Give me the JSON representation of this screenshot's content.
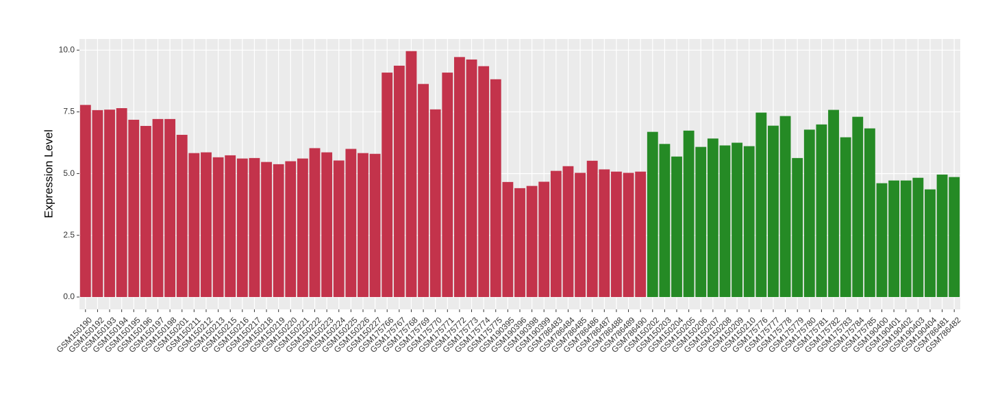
{
  "chart_data": {
    "type": "bar",
    "y_label": "Expression Level",
    "categories": [
      "GSM150190",
      "GSM150192",
      "GSM150193",
      "GSM150194",
      "GSM150195",
      "GSM150196",
      "GSM150197",
      "GSM150198",
      "GSM150201",
      "GSM150211",
      "GSM150212",
      "GSM150213",
      "GSM150215",
      "GSM150216",
      "GSM150217",
      "GSM150218",
      "GSM150219",
      "GSM150220",
      "GSM150221",
      "GSM150222",
      "GSM150223",
      "GSM150224",
      "GSM150225",
      "GSM150226",
      "GSM150227",
      "GSM175766",
      "GSM175767",
      "GSM175768",
      "GSM175769",
      "GSM175770",
      "GSM175771",
      "GSM175772",
      "GSM175773",
      "GSM175774",
      "GSM175775",
      "GSM190395",
      "GSM190396",
      "GSM190398",
      "GSM190399",
      "GSM786483",
      "GSM786484",
      "GSM786485",
      "GSM786486",
      "GSM786487",
      "GSM786488",
      "GSM786489",
      "GSM786490",
      "GSM150202",
      "GSM150203",
      "GSM150204",
      "GSM150205",
      "GSM150206",
      "GSM150207",
      "GSM150208",
      "GSM150209",
      "GSM150210",
      "GSM175776",
      "GSM175777",
      "GSM175778",
      "GSM175779",
      "GSM175780",
      "GSM175781",
      "GSM175782",
      "GSM175783",
      "GSM175784",
      "GSM175785",
      "GSM190400",
      "GSM190401",
      "GSM190402",
      "GSM190403",
      "GSM190404",
      "GSM786481",
      "GSM786482"
    ],
    "values": [
      7.78,
      7.57,
      7.59,
      7.65,
      7.18,
      6.93,
      7.21,
      7.21,
      6.57,
      5.83,
      5.86,
      5.66,
      5.74,
      5.61,
      5.63,
      5.47,
      5.38,
      5.5,
      5.61,
      6.03,
      5.86,
      5.53,
      6.0,
      5.83,
      5.8,
      9.09,
      9.37,
      9.96,
      8.63,
      7.6,
      9.09,
      9.72,
      9.62,
      9.35,
      8.82,
      4.66,
      4.41,
      4.5,
      4.67,
      5.11,
      5.3,
      5.03,
      5.52,
      5.17,
      5.08,
      5.03,
      5.08,
      6.69,
      6.2,
      5.69,
      6.74,
      6.08,
      6.42,
      6.14,
      6.25,
      6.11,
      7.47,
      6.94,
      7.33,
      5.63,
      6.78,
      6.99,
      7.58,
      6.47,
      7.3,
      6.83,
      4.61,
      4.72,
      4.72,
      4.83,
      4.36,
      4.96,
      4.86
    ],
    "colors": [
      "#c3334b",
      "#c3334b",
      "#c3334b",
      "#c3334b",
      "#c3334b",
      "#c3334b",
      "#c3334b",
      "#c3334b",
      "#c3334b",
      "#c3334b",
      "#c3334b",
      "#c3334b",
      "#c3334b",
      "#c3334b",
      "#c3334b",
      "#c3334b",
      "#c3334b",
      "#c3334b",
      "#c3334b",
      "#c3334b",
      "#c3334b",
      "#c3334b",
      "#c3334b",
      "#c3334b",
      "#c3334b",
      "#c3334b",
      "#c3334b",
      "#c3334b",
      "#c3334b",
      "#c3334b",
      "#c3334b",
      "#c3334b",
      "#c3334b",
      "#c3334b",
      "#c3334b",
      "#c3334b",
      "#c3334b",
      "#c3334b",
      "#c3334b",
      "#c3334b",
      "#c3334b",
      "#c3334b",
      "#c3334b",
      "#c3334b",
      "#c3334b",
      "#c3334b",
      "#c3334b",
      "#258a25",
      "#258a25",
      "#258a25",
      "#258a25",
      "#258a25",
      "#258a25",
      "#258a25",
      "#258a25",
      "#258a25",
      "#258a25",
      "#258a25",
      "#258a25",
      "#258a25",
      "#258a25",
      "#258a25",
      "#258a25",
      "#258a25",
      "#258a25",
      "#258a25",
      "#258a25",
      "#258a25",
      "#258a25",
      "#258a25",
      "#258a25",
      "#258a25",
      "#258a25"
    ],
    "ylim": [
      -0.5,
      10.45
    ],
    "yticks": [
      {
        "value": 0,
        "label": "0.0"
      },
      {
        "value": 2.5,
        "label": "2.5"
      },
      {
        "value": 5,
        "label": "5.0"
      },
      {
        "value": 7.5,
        "label": "7.5"
      },
      {
        "value": 10,
        "label": "10.0"
      }
    ],
    "grid": true
  }
}
